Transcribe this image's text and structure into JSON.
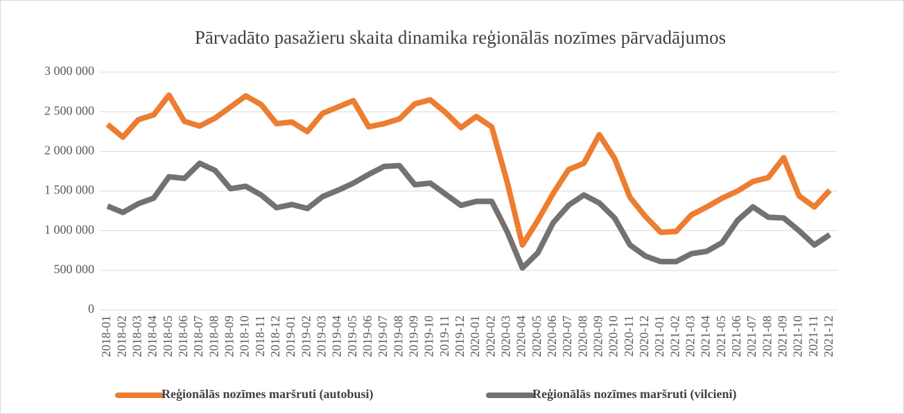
{
  "chart_data": {
    "type": "line",
    "title": "Pārvadāto pasažieru skaita dinamika reģionālās nozīmes pārvadājumos",
    "categories": [
      "2018-01",
      "2018-02",
      "2018-03",
      "2018-04",
      "2018-05",
      "2018-06",
      "2018-07",
      "2018-08",
      "2018-09",
      "2018-10",
      "2018-11",
      "2018-12",
      "2019-01",
      "2019-02",
      "2019-03",
      "2019-04",
      "2019-05",
      "2019-06",
      "2019-07",
      "2019-08",
      "2019-09",
      "2019-10",
      "2019-11",
      "2019-12",
      "2020-01",
      "2020-02",
      "2020-03",
      "2020-04",
      "2020-05",
      "2020-06",
      "2020-07",
      "2020-08",
      "2020-09",
      "2020-10",
      "2020-11",
      "2020-12",
      "2021-01",
      "2021-02",
      "2021-03",
      "2021-04",
      "2021-05",
      "2021-06",
      "2021-07",
      "2021-08",
      "2021-09",
      "2021-10",
      "2021-11",
      "2021-12"
    ],
    "series": [
      {
        "name": "Reģionālās nozīmes maršruti (autobusi)",
        "color": "#ed7d31",
        "values": [
          2340000,
          2180000,
          2400000,
          2460000,
          2710000,
          2380000,
          2320000,
          2420000,
          2560000,
          2700000,
          2590000,
          2350000,
          2370000,
          2250000,
          2480000,
          2560000,
          2640000,
          2310000,
          2350000,
          2410000,
          2600000,
          2650000,
          2490000,
          2300000,
          2440000,
          2310000,
          1620000,
          820000,
          1130000,
          1470000,
          1770000,
          1850000,
          2210000,
          1910000,
          1420000,
          1180000,
          980000,
          990000,
          1200000,
          1300000,
          1410000,
          1500000,
          1620000,
          1670000,
          1920000,
          1440000,
          1300000,
          1510000
        ]
      },
      {
        "name": "Reģionālās nozīmes maršruti (vilcieni)",
        "color": "#767171",
        "values": [
          1310000,
          1230000,
          1340000,
          1410000,
          1680000,
          1660000,
          1850000,
          1760000,
          1530000,
          1560000,
          1450000,
          1290000,
          1330000,
          1280000,
          1430000,
          1510000,
          1600000,
          1710000,
          1810000,
          1820000,
          1580000,
          1600000,
          1460000,
          1320000,
          1370000,
          1370000,
          990000,
          530000,
          720000,
          1100000,
          1320000,
          1450000,
          1350000,
          1160000,
          820000,
          680000,
          610000,
          610000,
          710000,
          740000,
          850000,
          1130000,
          1300000,
          1170000,
          1160000,
          1000000,
          820000,
          950000
        ]
      }
    ],
    "ylim": [
      0,
      3000000
    ],
    "yticks": [
      0,
      {
        "value": 500000,
        "label": "500 000"
      },
      {
        "value": 1000000,
        "label": "1 000 000"
      },
      {
        "value": 1500000,
        "label": "1 500 000"
      },
      {
        "value": 2000000,
        "label": "2 000 000"
      },
      {
        "value": 2500000,
        "label": "2 500 000"
      },
      {
        "value": 3000000,
        "label": "3 000 000"
      }
    ],
    "grid": true,
    "legend": "bottom"
  }
}
